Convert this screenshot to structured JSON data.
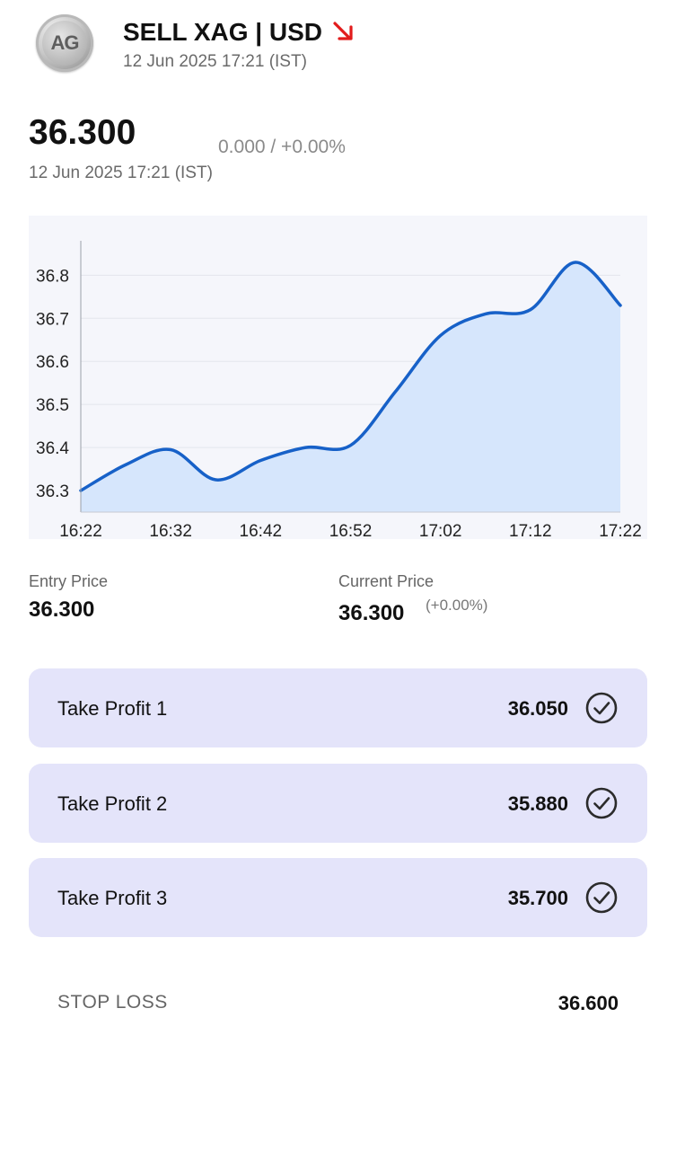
{
  "header": {
    "logo_text": "AG",
    "title": "SELL XAG | USD",
    "timestamp": "12 Jun 2025 17:21 (IST)",
    "direction_icon": "arrow-down-right-icon",
    "direction_color": "#e21b1b"
  },
  "quote": {
    "price": "36.300",
    "change": "0.000 / +0.00%",
    "timestamp": "12 Jun 2025 17:21 (IST)"
  },
  "chart_data": {
    "type": "area",
    "x": [
      "16:22",
      "16:27",
      "16:32",
      "16:37",
      "16:42",
      "16:47",
      "16:52",
      "16:57",
      "17:02",
      "17:07",
      "17:12",
      "17:17",
      "17:22"
    ],
    "xticks": [
      "16:22",
      "16:32",
      "16:42",
      "16:52",
      "17:02",
      "17:12",
      "17:22"
    ],
    "yticks": [
      "36.3",
      "36.4",
      "36.5",
      "36.6",
      "36.7",
      "36.8"
    ],
    "values": [
      36.3,
      36.36,
      36.395,
      36.325,
      36.37,
      36.4,
      36.405,
      36.53,
      36.66,
      36.71,
      36.72,
      36.83,
      36.73
    ],
    "ylim": [
      36.25,
      36.88
    ],
    "line_color": "#1761c8",
    "fill_color": "#d6e6fc",
    "grid": true
  },
  "prices": {
    "entry_label": "Entry Price",
    "entry_value": "36.300",
    "current_label": "Current Price",
    "current_value": "36.300",
    "current_change": "(+0.00%)"
  },
  "targets": [
    {
      "label": "Take Profit 1",
      "value": "36.050",
      "icon": "check-circle-icon"
    },
    {
      "label": "Take Profit 2",
      "value": "35.880",
      "icon": "check-circle-icon"
    },
    {
      "label": "Take Profit 3",
      "value": "35.700",
      "icon": "check-circle-icon"
    }
  ],
  "stop_loss": {
    "label": "STOP LOSS",
    "value": "36.600"
  }
}
